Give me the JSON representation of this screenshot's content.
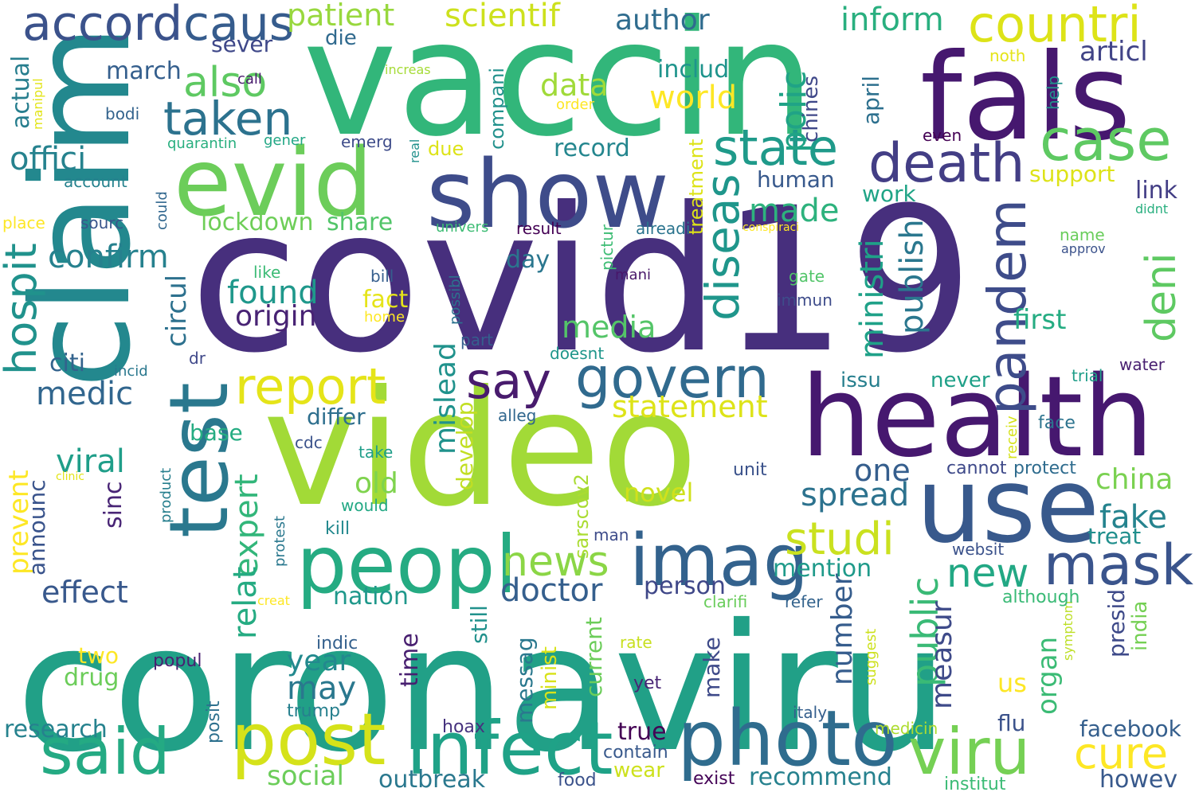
{
  "words": [
    {
      "text": "coronaviru",
      "color": "#21a087"
    },
    {
      "text": "covid19",
      "color": "#472f7d"
    },
    {
      "text": "vaccin",
      "color": "#32b67a"
    },
    {
      "text": "claim",
      "color": "#23888e"
    },
    {
      "text": "video",
      "color": "#a2da37"
    },
    {
      "text": "health",
      "color": "#46186f"
    },
    {
      "text": "fals",
      "color": "#46186f"
    },
    {
      "text": "show",
      "color": "#3e4c8a"
    },
    {
      "text": "use",
      "color": "#38598c"
    },
    {
      "text": "evid",
      "color": "#6ccd5a"
    },
    {
      "text": "test",
      "color": "#2a788e"
    },
    {
      "text": "peopl",
      "color": "#25ab82"
    },
    {
      "text": "photo",
      "color": "#2f6c8e"
    },
    {
      "text": "infect",
      "color": "#1fa287"
    },
    {
      "text": "post",
      "color": "#d5e21a"
    },
    {
      "text": "imag",
      "color": "#33628d"
    },
    {
      "text": "mask",
      "color": "#3a548c"
    },
    {
      "text": "viru",
      "color": "#75d054"
    },
    {
      "text": "said",
      "color": "#24aa83"
    },
    {
      "text": "death",
      "color": "#433e85"
    },
    {
      "text": "case",
      "color": "#5ec962"
    },
    {
      "text": "pandem",
      "color": "#3e4c8a"
    },
    {
      "text": "govern",
      "color": "#306a8e"
    },
    {
      "text": "state",
      "color": "#1f9a8a"
    },
    {
      "text": "report",
      "color": "#e5e419"
    },
    {
      "text": "say",
      "color": "#481b6d"
    },
    {
      "text": "countri",
      "color": "#dde318"
    },
    {
      "text": "deni",
      "color": "#5ec962"
    },
    {
      "text": "accord",
      "color": "#3b528b"
    },
    {
      "text": "caus",
      "color": "#365c8d"
    },
    {
      "text": "taken",
      "color": "#2c728e"
    },
    {
      "text": "also",
      "color": "#5ec962"
    },
    {
      "text": "diseas",
      "color": "#1f968b"
    },
    {
      "text": "news",
      "color": "#8bd646"
    },
    {
      "text": "studi",
      "color": "#cae11f"
    },
    {
      "text": "new",
      "color": "#22a884"
    },
    {
      "text": "cure",
      "color": "#fde725"
    },
    {
      "text": "hospit",
      "color": "#20928c"
    },
    {
      "text": "doctor",
      "color": "#355f8d"
    },
    {
      "text": "public",
      "color": "#3aba76"
    },
    {
      "text": "patient",
      "color": "#98d83e"
    },
    {
      "text": "scientif",
      "color": "#cde11d"
    },
    {
      "text": "author",
      "color": "#2f6c8e"
    },
    {
      "text": "inform",
      "color": "#29af7f"
    },
    {
      "text": "articl",
      "color": "#414487"
    },
    {
      "text": "offici",
      "color": "#26828e"
    },
    {
      "text": "polic",
      "color": "#20a386"
    },
    {
      "text": "data",
      "color": "#a0da39"
    },
    {
      "text": "world",
      "color": "#fde725"
    },
    {
      "text": "confirm",
      "color": "#26818e"
    },
    {
      "text": "found",
      "color": "#1f988b"
    },
    {
      "text": "origin",
      "color": "#482374"
    },
    {
      "text": "made",
      "color": "#2db27d"
    },
    {
      "text": "media",
      "color": "#54c568"
    },
    {
      "text": "spread",
      "color": "#2c728e"
    },
    {
      "text": "fake",
      "color": "#25838e"
    },
    {
      "text": "china",
      "color": "#7ad151"
    },
    {
      "text": "statement",
      "color": "#dde318"
    },
    {
      "text": "medic",
      "color": "#31668e"
    },
    {
      "text": "viral",
      "color": "#1f9e89"
    },
    {
      "text": "effect",
      "color": "#38588c"
    },
    {
      "text": "expert",
      "color": "#32b67a"
    },
    {
      "text": "relat",
      "color": "#25ab82"
    },
    {
      "text": "year",
      "color": "#23898e"
    },
    {
      "text": "may",
      "color": "#2a788e"
    },
    {
      "text": "ministri",
      "color": "#1fa188"
    },
    {
      "text": "publish",
      "color": "#2a778e"
    },
    {
      "text": "number",
      "color": "#365d8d"
    },
    {
      "text": "measur",
      "color": "#3e4a89"
    },
    {
      "text": "organ",
      "color": "#3bbb75"
    },
    {
      "text": "mislead",
      "color": "#20928c"
    },
    {
      "text": "develop",
      "color": "#c2df23"
    },
    {
      "text": "circul",
      "color": "#2d718e"
    },
    {
      "text": "lockdown",
      "color": "#6ece58"
    },
    {
      "text": "share",
      "color": "#52c569"
    },
    {
      "text": "old",
      "color": "#7fd34e"
    },
    {
      "text": "novel",
      "color": "#d0e11c"
    },
    {
      "text": "one",
      "color": "#355e8d"
    },
    {
      "text": "first",
      "color": "#25ac82"
    },
    {
      "text": "facebook",
      "color": "#355f8d"
    },
    {
      "text": "howev",
      "color": "#38598c"
    },
    {
      "text": "recommend",
      "color": "#26818e"
    },
    {
      "text": "outbreak",
      "color": "#2a788e"
    },
    {
      "text": "social",
      "color": "#6ccd5a"
    },
    {
      "text": "research",
      "color": "#26828e"
    },
    {
      "text": "prevent",
      "color": "#fde725"
    },
    {
      "text": "nation",
      "color": "#1f988b"
    },
    {
      "text": "mention",
      "color": "#1f9a8a"
    },
    {
      "text": "person",
      "color": "#3f4788"
    },
    {
      "text": "day",
      "color": "#2a768e"
    },
    {
      "text": "treatment",
      "color": "#dde318"
    },
    {
      "text": "human",
      "color": "#38598c"
    },
    {
      "text": "record",
      "color": "#24868e"
    },
    {
      "text": "work",
      "color": "#20a486"
    },
    {
      "text": "support",
      "color": "#dde318"
    },
    {
      "text": "link",
      "color": "#433e85"
    },
    {
      "text": "april",
      "color": "#2d708e"
    },
    {
      "text": "chines",
      "color": "#3f4889"
    },
    {
      "text": "includ",
      "color": "#1f948c"
    },
    {
      "text": "compani",
      "color": "#21918c"
    },
    {
      "text": "march",
      "color": "#355f8d"
    },
    {
      "text": "sever",
      "color": "#3f4889"
    },
    {
      "text": "die",
      "color": "#306a8e"
    },
    {
      "text": "actual",
      "color": "#277e8e"
    },
    {
      "text": "base",
      "color": "#25ac82"
    },
    {
      "text": "differ",
      "color": "#2e6f8e"
    },
    {
      "text": "citi",
      "color": "#33638d"
    },
    {
      "text": "sinc",
      "color": "#482475"
    },
    {
      "text": "announc",
      "color": "#3a548c"
    },
    {
      "text": "two",
      "color": "#fde725"
    },
    {
      "text": "drug",
      "color": "#6ccd5a"
    },
    {
      "text": "time",
      "color": "#481f70"
    },
    {
      "text": "messag",
      "color": "#2a788e"
    },
    {
      "text": "minist",
      "color": "#d8e219"
    },
    {
      "text": "current",
      "color": "#6ccd5a"
    },
    {
      "text": "still",
      "color": "#21918c"
    },
    {
      "text": "true",
      "color": "#440154"
    },
    {
      "text": "wear",
      "color": "#cde11d"
    },
    {
      "text": "issu",
      "color": "#277f8e"
    },
    {
      "text": "never",
      "color": "#1fa088"
    },
    {
      "text": "presid",
      "color": "#3e4a89"
    },
    {
      "text": "india",
      "color": "#75d054"
    },
    {
      "text": "us",
      "color": "#fde725"
    },
    {
      "text": "flu",
      "color": "#3b528b"
    },
    {
      "text": "treat",
      "color": "#218f8d"
    },
    {
      "text": "protect",
      "color": "#2f6c8e"
    },
    {
      "text": "cannot",
      "color": "#3e4989"
    },
    {
      "text": "fact",
      "color": "#e5e419"
    },
    {
      "text": "sarscov2",
      "color": "#aadc32"
    },
    {
      "text": "make",
      "color": "#3e4a89"
    },
    {
      "text": "posit",
      "color": "#2d708e"
    },
    {
      "text": "popul",
      "color": "#482071"
    },
    {
      "text": "trump",
      "color": "#27808e"
    },
    {
      "text": "yet",
      "color": "#482475"
    },
    {
      "text": "rate",
      "color": "#c8e020"
    },
    {
      "text": "italy",
      "color": "#355f8d"
    },
    {
      "text": "medicin",
      "color": "#addc30"
    },
    {
      "text": "institut",
      "color": "#3bbb75"
    },
    {
      "text": "exist",
      "color": "#450457"
    },
    {
      "text": "food",
      "color": "#3b528b"
    },
    {
      "text": "contain",
      "color": "#38598c"
    },
    {
      "text": "hoax",
      "color": "#46327e"
    },
    {
      "text": "indic",
      "color": "#34608d"
    },
    {
      "text": "suggest",
      "color": "#cde11d"
    },
    {
      "text": "symptom",
      "color": "#bddf26"
    },
    {
      "text": "although",
      "color": "#3aba76"
    },
    {
      "text": "websit",
      "color": "#3b528b"
    },
    {
      "text": "face",
      "color": "#2c738e"
    },
    {
      "text": "receiv",
      "color": "#d5e21a"
    },
    {
      "text": "trial",
      "color": "#1f9e89"
    },
    {
      "text": "water",
      "color": "#481f70"
    },
    {
      "text": "clarifi",
      "color": "#69cd5b"
    },
    {
      "text": "refer",
      "color": "#33638d"
    },
    {
      "text": "unit",
      "color": "#3b528b"
    },
    {
      "text": "man",
      "color": "#3e4c8a"
    },
    {
      "text": "kill",
      "color": "#23898e"
    },
    {
      "text": "would",
      "color": "#22a884"
    },
    {
      "text": "protest",
      "color": "#2a788e"
    },
    {
      "text": "product",
      "color": "#277f8e"
    },
    {
      "text": "creat",
      "color": "#fde725"
    },
    {
      "text": "take",
      "color": "#1f9e89"
    },
    {
      "text": "cdc",
      "color": "#3b528b"
    },
    {
      "text": "alleg",
      "color": "#31678e"
    },
    {
      "text": "doesnt",
      "color": "#1f968b"
    },
    {
      "text": "part",
      "color": "#355f8d"
    },
    {
      "text": "possibl",
      "color": "#2c728e"
    },
    {
      "text": "bill",
      "color": "#355e8d"
    },
    {
      "text": "like",
      "color": "#3bbb75"
    },
    {
      "text": "mani",
      "color": "#481769"
    },
    {
      "text": "pictur",
      "color": "#3dbc74"
    },
    {
      "text": "alreadi",
      "color": "#2b748e"
    },
    {
      "text": "conspiraci",
      "color": "#fde725"
    },
    {
      "text": "gate",
      "color": "#52c569"
    },
    {
      "text": "immun",
      "color": "#3e4c8a"
    },
    {
      "text": "name",
      "color": "#69cd5b"
    },
    {
      "text": "approv",
      "color": "#3b528b"
    },
    {
      "text": "didnt",
      "color": "#29af7f"
    },
    {
      "text": "even",
      "color": "#440154"
    },
    {
      "text": "help",
      "color": "#21918c"
    },
    {
      "text": "noth",
      "color": "#e5e419"
    },
    {
      "text": "order",
      "color": "#fde725"
    },
    {
      "text": "increas",
      "color": "#a5db36"
    },
    {
      "text": "call",
      "color": "#481b6d"
    },
    {
      "text": "manipul",
      "color": "#e2e418"
    },
    {
      "text": "bodi",
      "color": "#33638d"
    },
    {
      "text": "quarantin",
      "color": "#29af7f"
    },
    {
      "text": "gener",
      "color": "#22a785"
    },
    {
      "text": "emerg",
      "color": "#3e4c8a"
    },
    {
      "text": "due",
      "color": "#dde318"
    },
    {
      "text": "account",
      "color": "#26828e"
    },
    {
      "text": "place",
      "color": "#fde725"
    },
    {
      "text": "sourc",
      "color": "#39558c"
    },
    {
      "text": "could",
      "color": "#31678e"
    },
    {
      "text": "univers",
      "color": "#3dbc74"
    },
    {
      "text": "result",
      "color": "#440154"
    },
    {
      "text": "real",
      "color": "#21918c"
    },
    {
      "text": "incid",
      "color": "#2a788e"
    },
    {
      "text": "dr",
      "color": "#3f4889"
    },
    {
      "text": "clinic",
      "color": "#e2e418"
    },
    {
      "text": "home",
      "color": "#fde725"
    }
  ]
}
